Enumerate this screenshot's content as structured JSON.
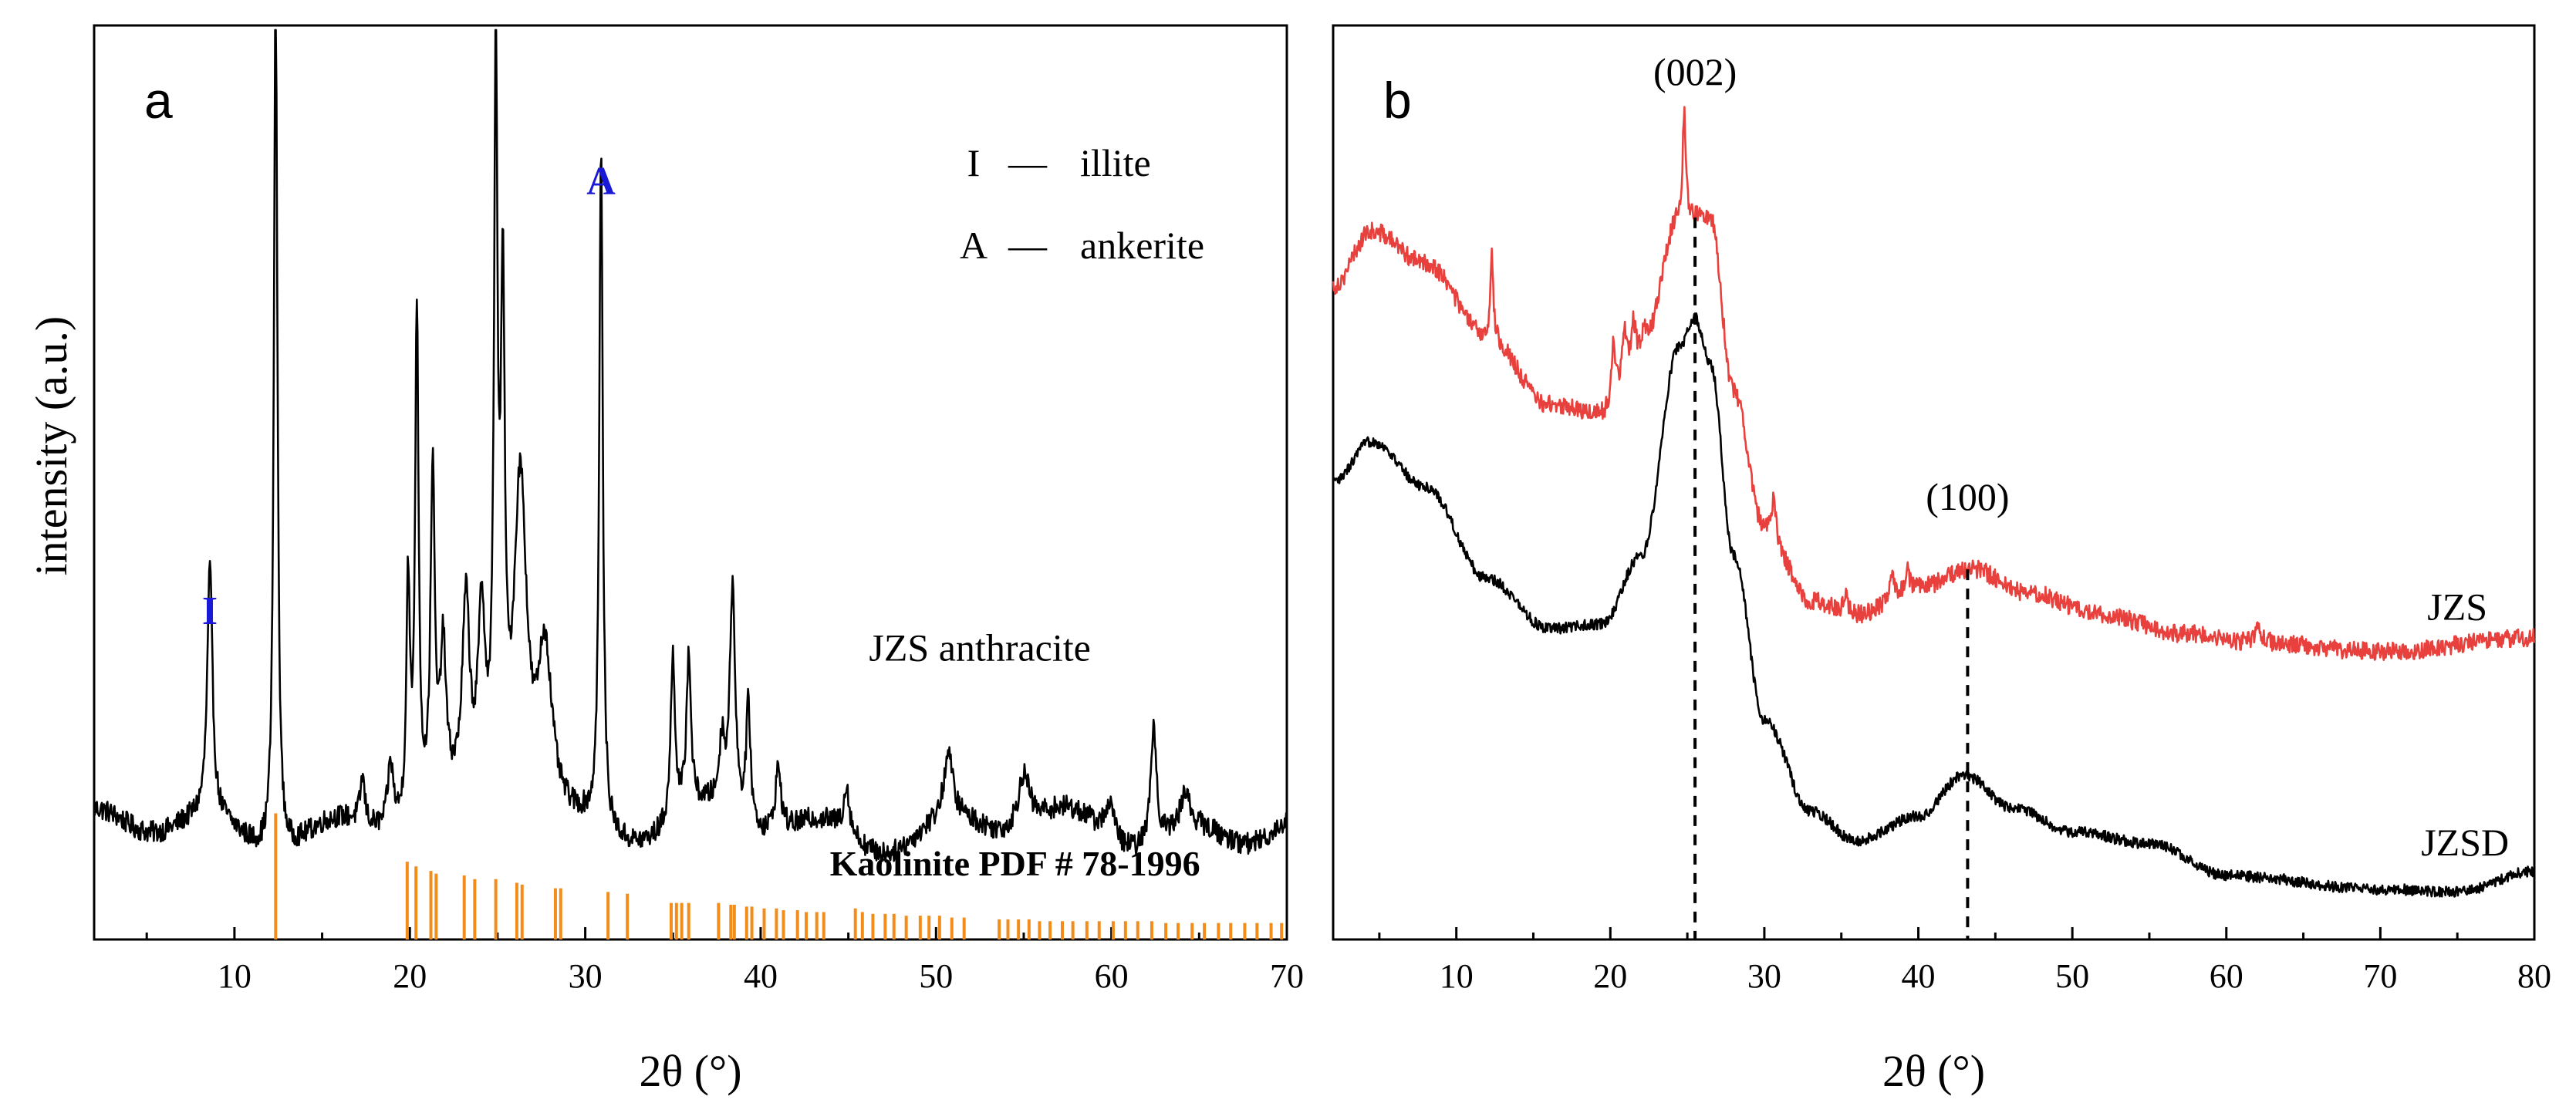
{
  "figure": {
    "charts": [
      {
        "id": "a",
        "type": "line",
        "panel_label": "a",
        "xlabel": "2θ (°)",
        "ylabel": "intensity (a.u.)",
        "xlim": [
          2,
          70
        ],
        "xticks": [
          10,
          20,
          30,
          40,
          50,
          60,
          70
        ],
        "yticks_shown": false,
        "legend": [
          {
            "symbol": "I",
            "dash": "—",
            "name": "illite"
          },
          {
            "symbol": "A",
            "dash": "—",
            "name": "ankerite"
          }
        ],
        "series": [
          {
            "name": "JZS anthracite",
            "color": "#000000",
            "baseline": 0.12,
            "noise": 0.012,
            "peaks": [
              {
                "x": 8.6,
                "h": 0.27,
                "w": 0.18
              },
              {
                "x": 12.35,
                "h": 0.96,
                "w": 0.12
              },
              {
                "x": 17.3,
                "h": 0.05,
                "w": 0.15
              },
              {
                "x": 18.9,
                "h": 0.07,
                "w": 0.2
              },
              {
                "x": 19.9,
                "h": 0.26,
                "w": 0.12
              },
              {
                "x": 20.4,
                "h": 0.55,
                "w": 0.12
              },
              {
                "x": 21.3,
                "h": 0.36,
                "w": 0.14
              },
              {
                "x": 21.9,
                "h": 0.16,
                "w": 0.2
              },
              {
                "x": 23.2,
                "h": 0.21,
                "w": 0.25
              },
              {
                "x": 24.1,
                "h": 0.2,
                "w": 0.25
              },
              {
                "x": 24.9,
                "h": 0.79,
                "w": 0.12
              },
              {
                "x": 25.3,
                "h": 0.52,
                "w": 0.14
              },
              {
                "x": 26.3,
                "h": 0.38,
                "w": 0.45
              },
              {
                "x": 27.7,
                "h": 0.19,
                "w": 0.5
              },
              {
                "x": 30.9,
                "h": 0.75,
                "w": 0.12
              },
              {
                "x": 35.0,
                "h": 0.18,
                "w": 0.15
              },
              {
                "x": 35.9,
                "h": 0.17,
                "w": 0.15
              },
              {
                "x": 37.8,
                "h": 0.07,
                "w": 0.2
              },
              {
                "x": 38.4,
                "h": 0.25,
                "w": 0.18
              },
              {
                "x": 39.3,
                "h": 0.13,
                "w": 0.15
              },
              {
                "x": 41.0,
                "h": 0.07,
                "w": 0.2
              },
              {
                "x": 44.9,
                "h": 0.05,
                "w": 0.2
              },
              {
                "x": 50.7,
                "h": 0.07,
                "w": 0.3
              },
              {
                "x": 55.0,
                "h": 0.06,
                "w": 0.4
              },
              {
                "x": 59.9,
                "h": 0.04,
                "w": 0.3
              },
              {
                "x": 62.4,
                "h": 0.13,
                "w": 0.2
              },
              {
                "x": 64.2,
                "h": 0.04,
                "w": 0.3
              }
            ]
          }
        ],
        "reference": {
          "label": "Kaolinite PDF # 78-1996",
          "color": "#f28c1a",
          "lines": [
            {
              "x": 12.35,
              "h": 0.138
            },
            {
              "x": 19.85,
              "h": 0.085
            },
            {
              "x": 20.35,
              "h": 0.08
            },
            {
              "x": 21.2,
              "h": 0.075
            },
            {
              "x": 21.5,
              "h": 0.072
            },
            {
              "x": 23.1,
              "h": 0.07
            },
            {
              "x": 23.7,
              "h": 0.066
            },
            {
              "x": 24.9,
              "h": 0.066
            },
            {
              "x": 26.1,
              "h": 0.062
            },
            {
              "x": 26.4,
              "h": 0.06
            },
            {
              "x": 28.3,
              "h": 0.056
            },
            {
              "x": 28.6,
              "h": 0.056
            },
            {
              "x": 31.3,
              "h": 0.052
            },
            {
              "x": 32.4,
              "h": 0.05
            },
            {
              "x": 34.9,
              "h": 0.04
            },
            {
              "x": 35.2,
              "h": 0.04
            },
            {
              "x": 35.5,
              "h": 0.04
            },
            {
              "x": 35.9,
              "h": 0.04
            },
            {
              "x": 37.6,
              "h": 0.04
            },
            {
              "x": 38.3,
              "h": 0.038
            },
            {
              "x": 38.5,
              "h": 0.038
            },
            {
              "x": 39.2,
              "h": 0.036
            },
            {
              "x": 39.5,
              "h": 0.036
            },
            {
              "x": 40.2,
              "h": 0.034
            },
            {
              "x": 40.9,
              "h": 0.034
            },
            {
              "x": 41.3,
              "h": 0.032
            },
            {
              "x": 42.1,
              "h": 0.032
            },
            {
              "x": 42.6,
              "h": 0.03
            },
            {
              "x": 43.2,
              "h": 0.03
            },
            {
              "x": 43.6,
              "h": 0.03
            },
            {
              "x": 45.4,
              "h": 0.034
            },
            {
              "x": 45.8,
              "h": 0.03
            },
            {
              "x": 46.4,
              "h": 0.028
            },
            {
              "x": 47.1,
              "h": 0.028
            },
            {
              "x": 47.6,
              "h": 0.028
            },
            {
              "x": 48.3,
              "h": 0.026
            },
            {
              "x": 49.1,
              "h": 0.026
            },
            {
              "x": 49.6,
              "h": 0.026
            },
            {
              "x": 50.2,
              "h": 0.026
            },
            {
              "x": 50.9,
              "h": 0.024
            },
            {
              "x": 51.6,
              "h": 0.024
            },
            {
              "x": 53.6,
              "h": 0.022
            },
            {
              "x": 54.1,
              "h": 0.022
            },
            {
              "x": 54.7,
              "h": 0.022
            },
            {
              "x": 55.3,
              "h": 0.022
            },
            {
              "x": 55.9,
              "h": 0.02
            },
            {
              "x": 56.5,
              "h": 0.02
            },
            {
              "x": 57.2,
              "h": 0.02
            },
            {
              "x": 57.8,
              "h": 0.02
            },
            {
              "x": 58.6,
              "h": 0.02
            },
            {
              "x": 59.3,
              "h": 0.02
            },
            {
              "x": 60.1,
              "h": 0.02
            },
            {
              "x": 60.8,
              "h": 0.02
            },
            {
              "x": 61.5,
              "h": 0.02
            },
            {
              "x": 62.3,
              "h": 0.02
            },
            {
              "x": 63.1,
              "h": 0.018
            },
            {
              "x": 63.8,
              "h": 0.018
            },
            {
              "x": 64.6,
              "h": 0.018
            },
            {
              "x": 65.3,
              "h": 0.018
            },
            {
              "x": 66.1,
              "h": 0.018
            },
            {
              "x": 66.8,
              "h": 0.018
            },
            {
              "x": 67.6,
              "h": 0.018
            },
            {
              "x": 68.3,
              "h": 0.018
            },
            {
              "x": 69.1,
              "h": 0.018
            },
            {
              "x": 69.7,
              "h": 0.018
            }
          ]
        },
        "annotations": [
          {
            "text": "I",
            "x": 8.6,
            "y": 0.345,
            "color": "#1a1ad6",
            "bold": true
          },
          {
            "text": "A",
            "x": 30.9,
            "y": 0.815,
            "color": "#1a1ad6",
            "bold": true
          },
          {
            "text": "JZS anthracite",
            "x": 52.5,
            "y": 0.305,
            "color": "#000000",
            "bold": false
          },
          {
            "text": "Kaolinite PDF # 78-1996",
            "x": 54.5,
            "y": 0.07,
            "color": "#000000",
            "bold": true
          }
        ]
      },
      {
        "id": "b",
        "type": "line",
        "panel_label": "b",
        "xlabel": "2θ (°)",
        "ylabel": "",
        "xlim": [
          2,
          80
        ],
        "xticks": [
          10,
          20,
          30,
          40,
          50,
          60,
          70,
          80
        ],
        "yticks_shown": false,
        "series": [
          {
            "name": "JZS",
            "color": "#e8413d",
            "noise": 0.01,
            "baseline_points": [
              [
                2,
                0.715
              ],
              [
                4.5,
                0.775
              ],
              [
                8,
                0.74
              ],
              [
                12,
                0.66
              ],
              [
                16,
                0.585
              ],
              [
                19.5,
                0.575
              ],
              [
                22,
                0.64
              ],
              [
                24.5,
                0.79
              ],
              [
                26.5,
                0.79
              ],
              [
                28,
                0.6
              ],
              [
                30,
                0.45
              ],
              [
                33,
                0.37
              ],
              [
                36,
                0.355
              ],
              [
                40,
                0.385
              ],
              [
                43.5,
                0.405
              ],
              [
                47,
                0.38
              ],
              [
                52,
                0.355
              ],
              [
                57,
                0.335
              ],
              [
                62,
                0.325
              ],
              [
                70,
                0.315
              ],
              [
                80,
                0.33
              ]
            ],
            "peaks": [
              {
                "x": 12.3,
                "h": 0.1,
                "w": 0.1
              },
              {
                "x": 20.2,
                "h": 0.07,
                "w": 0.15
              },
              {
                "x": 20.9,
                "h": 0.05,
                "w": 0.15
              },
              {
                "x": 21.5,
                "h": 0.04,
                "w": 0.15
              },
              {
                "x": 22.2,
                "h": 0.03,
                "w": 0.2
              },
              {
                "x": 24.8,
                "h": 0.12,
                "w": 0.12
              },
              {
                "x": 30.6,
                "h": 0.04,
                "w": 0.15
              },
              {
                "x": 35.3,
                "h": 0.025,
                "w": 0.15
              },
              {
                "x": 38.3,
                "h": 0.03,
                "w": 0.15
              },
              {
                "x": 39.3,
                "h": 0.02,
                "w": 0.15
              },
              {
                "x": 62.1,
                "h": 0.018,
                "w": 0.2
              }
            ]
          },
          {
            "name": "JZSD",
            "color": "#000000",
            "noise": 0.006,
            "baseline_points": [
              [
                2,
                0.5
              ],
              [
                4.5,
                0.545
              ],
              [
                8,
                0.495
              ],
              [
                12,
                0.395
              ],
              [
                16,
                0.34
              ],
              [
                19.5,
                0.345
              ],
              [
                22,
                0.42
              ],
              [
                24.5,
                0.65
              ],
              [
                25.5,
                0.68
              ],
              [
                26.5,
                0.63
              ],
              [
                28,
                0.42
              ],
              [
                30,
                0.24
              ],
              [
                33,
                0.14
              ],
              [
                36,
                0.108
              ],
              [
                40,
                0.135
              ],
              [
                43,
                0.18
              ],
              [
                46,
                0.145
              ],
              [
                50,
                0.118
              ],
              [
                55,
                0.105
              ],
              [
                60,
                0.07
              ],
              [
                70,
                0.055
              ],
              [
                75,
                0.052
              ],
              [
                80,
                0.075
              ]
            ],
            "peaks": []
          }
        ],
        "annotations": [
          {
            "text": "(002)",
            "x": 25.5,
            "y": 0.935,
            "color": "#000000"
          },
          {
            "text": "(100)",
            "x": 43.2,
            "y": 0.47,
            "color": "#000000"
          },
          {
            "text": "JZS",
            "x": 75.0,
            "y": 0.35,
            "color": "#000000"
          },
          {
            "text": "JZSD",
            "x": 75.5,
            "y": 0.092,
            "color": "#000000"
          }
        ],
        "dashed_markers": [
          {
            "x": 25.5,
            "y_top": 0.79,
            "y_bottom": 0.0
          },
          {
            "x": 43.2,
            "y_top": 0.405,
            "y_bottom": 0.0
          }
        ]
      }
    ]
  },
  "chart_data": [
    {
      "type": "line",
      "title": "a",
      "xlabel": "2θ (°)",
      "ylabel": "intensity (a.u.)",
      "xlim": [
        2,
        70
      ],
      "series": [
        {
          "name": "JZS anthracite",
          "peak_positions_2theta": [
            8.6,
            12.35,
            20.4,
            21.3,
            24.9,
            25.3,
            26.3,
            30.9,
            35.0,
            35.9,
            38.4,
            39.3,
            50.7,
            55.0,
            62.4
          ]
        },
        {
          "name": "Kaolinite PDF # 78-1996",
          "reference_lines_2theta": [
            12.35,
            19.85,
            20.35,
            21.2,
            21.5,
            23.1,
            23.7,
            24.9,
            26.1,
            26.4,
            28.3,
            28.6,
            31.3,
            32.4
          ]
        }
      ],
      "legend": [
        "I — illite",
        "A — ankerite"
      ]
    },
    {
      "type": "line",
      "title": "b",
      "xlabel": "2θ (°)",
      "ylabel": "",
      "xlim": [
        2,
        80
      ],
      "series": [
        {
          "name": "JZS",
          "x": [
            2,
            4.5,
            12,
            19.5,
            25,
            30,
            36,
            43.5,
            52,
            62,
            80
          ],
          "y": [
            0.715,
            0.775,
            0.66,
            0.575,
            0.79,
            0.45,
            0.355,
            0.405,
            0.355,
            0.325,
            0.33
          ]
        },
        {
          "name": "JZSD",
          "x": [
            2,
            4.5,
            12,
            19.5,
            25.5,
            30,
            36,
            43,
            50,
            60,
            80
          ],
          "y": [
            0.5,
            0.545,
            0.395,
            0.345,
            0.68,
            0.24,
            0.108,
            0.18,
            0.118,
            0.07,
            0.075
          ]
        }
      ],
      "annotations": [
        "(002)",
        "(100)"
      ]
    }
  ]
}
